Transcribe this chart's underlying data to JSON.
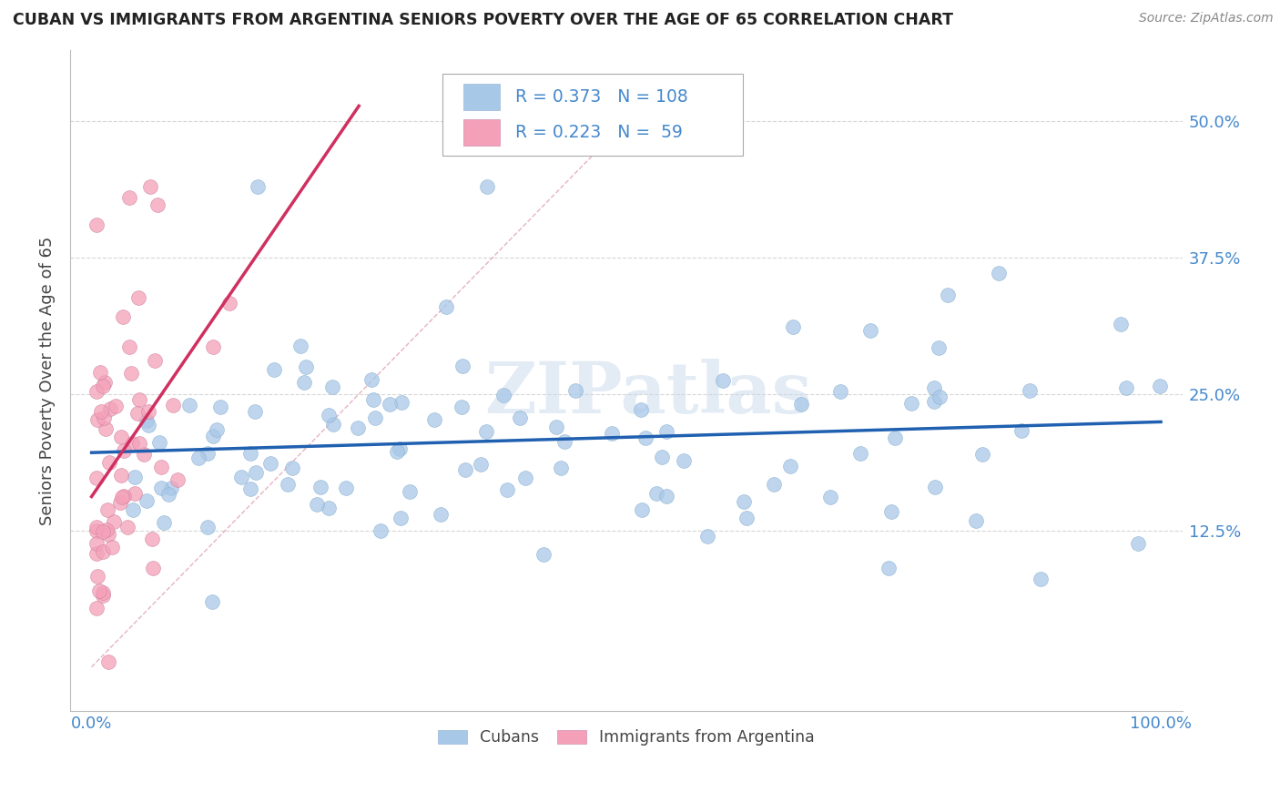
{
  "title": "CUBAN VS IMMIGRANTS FROM ARGENTINA SENIORS POVERTY OVER THE AGE OF 65 CORRELATION CHART",
  "source": "Source: ZipAtlas.com",
  "ylabel": "Seniors Poverty Over the Age of 65",
  "xlim": [
    -0.02,
    1.02
  ],
  "ylim": [
    -0.04,
    0.565
  ],
  "yticks": [
    0.0,
    0.125,
    0.25,
    0.375,
    0.5
  ],
  "ytick_labels_left": [
    "",
    "",
    "",
    "",
    ""
  ],
  "ytick_labels_right": [
    "",
    "12.5%",
    "25.0%",
    "37.5%",
    "50.0%"
  ],
  "xtick_labels": [
    "0.0%",
    "100.0%"
  ],
  "legend_labels": [
    "Cubans",
    "Immigrants from Argentina"
  ],
  "r_cuban": 0.373,
  "n_cuban": 108,
  "r_arg": 0.223,
  "n_arg": 59,
  "blue_scatter_color": "#a8c8e8",
  "pink_scatter_color": "#f4a0b8",
  "blue_line_color": "#2060b0",
  "pink_line_color": "#d03060",
  "diag_line_color": "#e0a0b0",
  "watermark": "ZIPatlas",
  "background_color": "#ffffff",
  "grid_color": "#cccccc",
  "legend_text_color": "#4488cc",
  "axis_label_color": "#4488cc",
  "title_color": "#222222"
}
